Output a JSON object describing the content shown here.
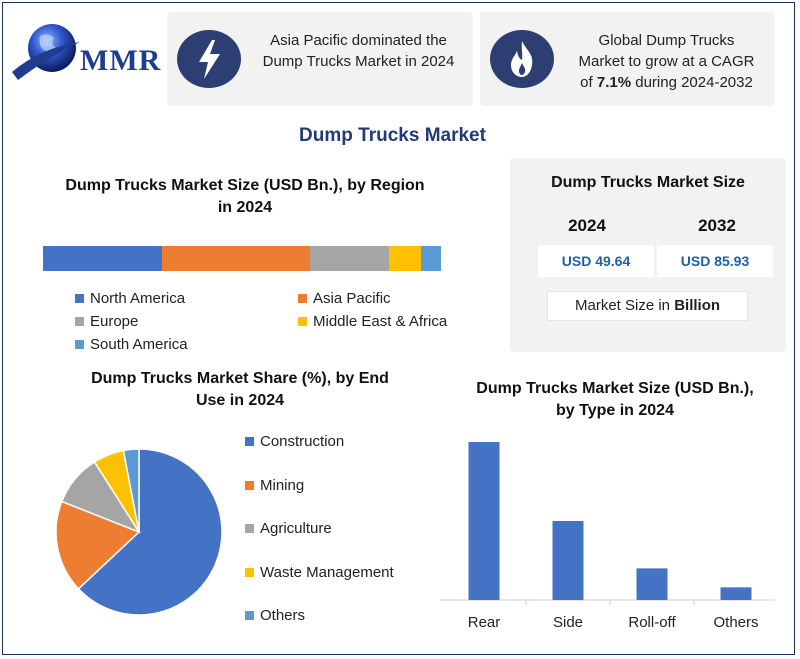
{
  "logo": {
    "text": "MMR"
  },
  "top_cards": [
    {
      "icon": "lightning-icon",
      "line1": "Asia Pacific dominated the",
      "line2": "Dump Trucks Market in 2024"
    },
    {
      "icon": "flame-icon",
      "line1": "Global Dump Trucks",
      "line2": "Market to grow at a CAGR",
      "line3_pre": "of ",
      "line3_bold": "7.1%",
      "line3_post": " during 2024-2032"
    }
  ],
  "main_title": "Dump Trucks Market",
  "region_section": {
    "title_line1": "Dump Trucks Market Size (USD Bn.), by Region",
    "title_line2": "in 2024"
  },
  "market_size": {
    "title": "Dump Trucks Market Size",
    "year1": "2024",
    "year2": "2032",
    "value1": "USD 49.64",
    "value2": "USD 85.93",
    "unit_pre": "Market Size in ",
    "unit_bold": "Billion"
  },
  "pie_section": {
    "title_line1": "Dump Trucks Market Share (%), by End",
    "title_line2": "Use in 2024"
  },
  "bar_section": {
    "title_line1": "Dump Trucks Market Size (USD Bn.),",
    "title_line2": "by Type in 2024"
  },
  "colors": {
    "blue": "#4472c4",
    "orange": "#ed7d31",
    "gray": "#a5a5a5",
    "yellow": "#ffc000",
    "lightblue": "#5b9bd5",
    "navy": "#2d3e73"
  },
  "chart_data": [
    {
      "type": "bar",
      "orientation": "horizontal-stacked",
      "categories": [
        "North America",
        "Asia Pacific",
        "Europe",
        "Middle East & Africa",
        "South America"
      ],
      "values": [
        30,
        37,
        20,
        8,
        5
      ],
      "colors": [
        "#4472c4",
        "#ed7d31",
        "#a5a5a5",
        "#ffc000",
        "#5b9bd5"
      ],
      "legend_placement": "bottom"
    },
    {
      "type": "pie",
      "categories": [
        "Construction",
        "Mining",
        "Agriculture",
        "Waste Management",
        "Others"
      ],
      "values": [
        63,
        18,
        10,
        6,
        3
      ],
      "colors": [
        "#4472c4",
        "#ed7d31",
        "#a5a5a5",
        "#ffc000",
        "#5b9bd5"
      ],
      "legend_placement": "right"
    },
    {
      "type": "bar",
      "categories": [
        "Rear",
        "Side",
        "Roll-off",
        "Others"
      ],
      "values": [
        100,
        50,
        20,
        8
      ],
      "colors": [
        "#4472c4"
      ],
      "grid": false
    }
  ]
}
